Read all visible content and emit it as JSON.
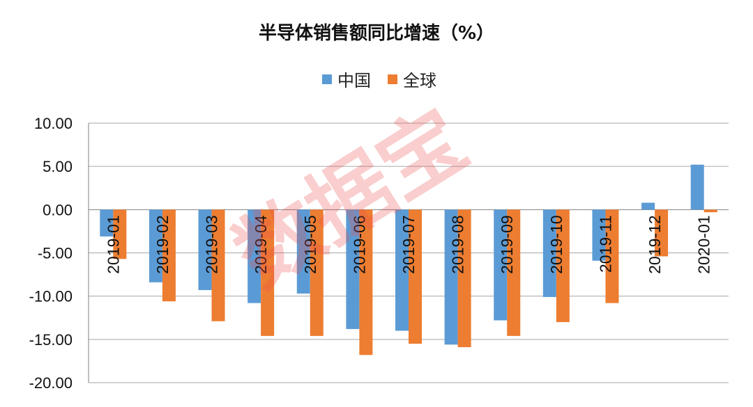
{
  "chart_data": {
    "type": "bar",
    "title": "半导体销售额同比增速（%）",
    "categories": [
      "2019-01",
      "2019-02",
      "2019-03",
      "2019-04",
      "2019-05",
      "2019-06",
      "2019-07",
      "2019-08",
      "2019-09",
      "2019-10",
      "2019-11",
      "2019-12",
      "2020-01"
    ],
    "series": [
      {
        "name": "中国",
        "color": "#5b9bd5",
        "values": [
          -3.1,
          -8.4,
          -9.3,
          -10.8,
          -9.7,
          -13.8,
          -14.0,
          -15.6,
          -12.8,
          -10.1,
          -5.9,
          0.8,
          5.2
        ]
      },
      {
        "name": "全球",
        "color": "#ed7d31",
        "values": [
          -5.7,
          -10.6,
          -12.9,
          -14.6,
          -14.6,
          -16.8,
          -15.5,
          -15.9,
          -14.6,
          -13.0,
          -10.8,
          -5.4,
          -0.3
        ]
      }
    ],
    "ylim": [
      -20,
      10
    ],
    "yticks": [
      "10.00",
      "5.00",
      "0.00",
      "-5.00",
      "-10.00",
      "-15.00",
      "-20.00"
    ],
    "grid": true,
    "legend": "top-center"
  },
  "watermark": "数据宝"
}
